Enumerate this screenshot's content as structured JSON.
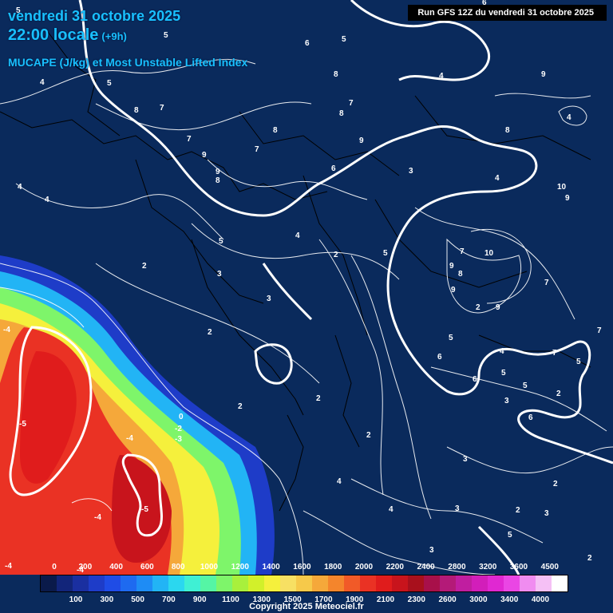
{
  "header": {
    "date": "vendredi 31 octobre 2025",
    "time": "22:00 locale",
    "offset": "(+9h)",
    "subtitle": "MUCAPE (J/kg) et Most Unstable Lifted Index"
  },
  "run_label": "Run GFS 12Z du vendredi 31 octobre 2025",
  "copyright": "Copyright 2025 Meteociel.fr",
  "legend": {
    "colors": [
      "#0a1a4a",
      "#12257a",
      "#1a2fa0",
      "#1e3cc8",
      "#1f4ce6",
      "#1e6af0",
      "#1e8cf5",
      "#22b4f5",
      "#2bd7ef",
      "#3ff0d4",
      "#55f5a5",
      "#7ef56a",
      "#a8f03c",
      "#d2f02a",
      "#f5f03c",
      "#f7e063",
      "#f6c94a",
      "#f5a83a",
      "#f4852c",
      "#f15a28",
      "#ea3224",
      "#e01c1c",
      "#c8141c",
      "#a8101c",
      "#a8104a",
      "#b41a78",
      "#c01ea0",
      "#d21eba",
      "#e028d2",
      "#ea46e4",
      "#f08cf0",
      "#f5c0f5",
      "#ffffff"
    ],
    "upper_ticks": [
      "0",
      "200",
      "400",
      "600",
      "800",
      "1000",
      "1200",
      "1400",
      "1600",
      "1800",
      "2000",
      "2200",
      "2400",
      "2800",
      "3200",
      "3600",
      "4500"
    ],
    "lower_ticks": [
      "100",
      "300",
      "500",
      "700",
      "900",
      "1100",
      "1300",
      "1500",
      "1700",
      "1900",
      "2100",
      "2300",
      "2600",
      "3000",
      "3400",
      "4000"
    ]
  },
  "contour_labels": [
    "5",
    "6",
    "5",
    "6",
    "4",
    "8",
    "9",
    "5",
    "4",
    "5",
    "8",
    "7",
    "7",
    "8",
    "8",
    "9",
    "7",
    "7",
    "8",
    "9",
    "6",
    "3",
    "4",
    "4",
    "9",
    "8",
    "4",
    "4",
    "10",
    "9",
    "4",
    "5",
    "5",
    "2",
    "2",
    "10",
    "9",
    "7",
    "3",
    "8",
    "9",
    "2",
    "3",
    "7",
    "7",
    "9",
    "2",
    "5",
    "5",
    "4",
    "2",
    "5",
    "6",
    "7",
    "5",
    "2",
    "2",
    "3",
    "6",
    "2",
    "-4",
    "-5",
    "-4",
    "-5",
    "-4",
    "-4",
    "-4",
    "0",
    "-2",
    "-3",
    "6",
    "2",
    "4",
    "3",
    "3",
    "3",
    "4",
    "5",
    "2",
    "3",
    "2"
  ],
  "map_legend_colors": {
    "land_border": "#000000",
    "sea": "#0a2a5c",
    "contour": "#ffffff"
  }
}
